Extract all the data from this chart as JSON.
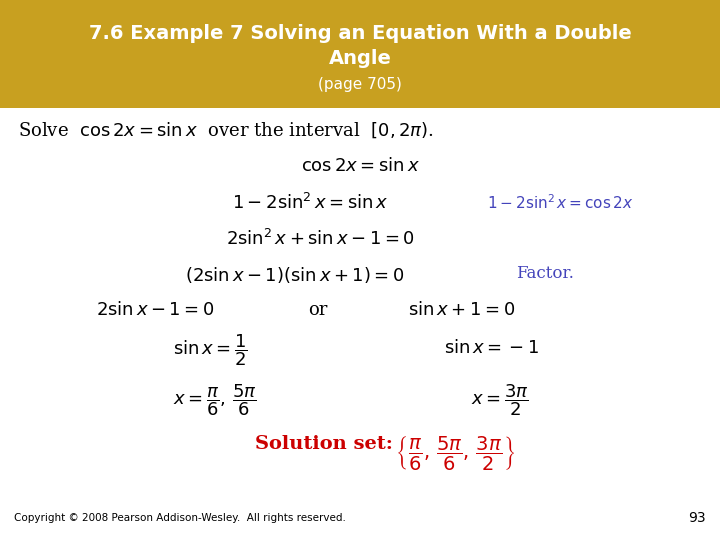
{
  "bg_color": "#ffffff",
  "header_bg_color": "#C8A020",
  "header_text_color": "#ffffff",
  "header_line1": "7.6 Example 7 Solving an Equation With a Double",
  "header_line2": "Angle",
  "header_line3": "(page 705)",
  "blue_color": "#4444BB",
  "red_color": "#CC0000",
  "black_color": "#000000",
  "footer_text": "Copyright © 2008 Pearson Addison-Wesley.  All rights reserved.",
  "page_number": "93"
}
